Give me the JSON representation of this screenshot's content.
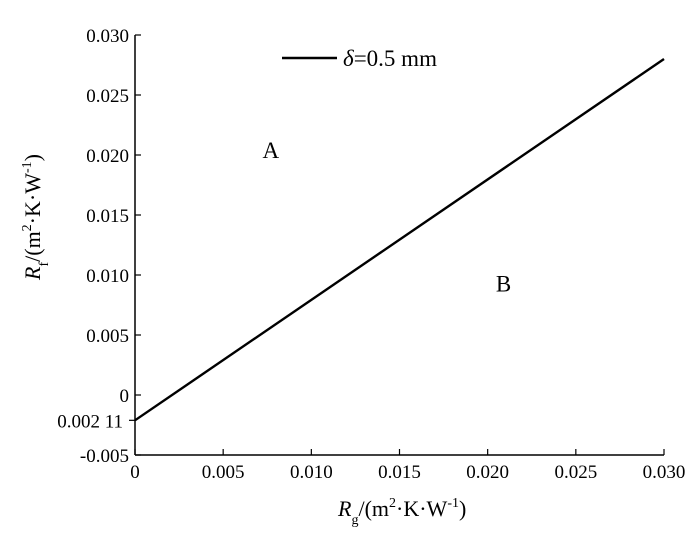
{
  "chart_data": {
    "type": "line",
    "x_ticks": [
      "0",
      "0.005",
      "0.010",
      "0.015",
      "0.020",
      "0.025",
      "0.030"
    ],
    "y_ticks": [
      "-0.005",
      "0",
      "0.005",
      "0.010",
      "0.015",
      "0.020",
      "0.025",
      "0.030"
    ],
    "xlim": [
      0,
      0.03
    ],
    "ylim": [
      -0.005,
      0.03
    ],
    "grid": false,
    "legend_position": "top",
    "series": [
      {
        "name": "δ=0.5 mm",
        "legend_symbol": "δ",
        "legend_value": "=0.5 mm",
        "color": "#000000",
        "x": [
          0,
          0.03
        ],
        "y": [
          -0.00211,
          0.028
        ]
      }
    ],
    "xlabel": {
      "main": "R",
      "sub": "g",
      "unit_open": "/(m",
      "sup1": "2",
      "unit_mid": "·K·W",
      "sup2": "-1",
      "unit_close": ")"
    },
    "ylabel": {
      "main": "R",
      "sub": "f",
      "unit_open": "/(m",
      "sup1": "2",
      "unit_mid": "·K·W",
      "sup2": "-1",
      "unit_close": ")"
    },
    "annotations": [
      {
        "text": "A",
        "x": 0.0077,
        "y": 0.0204
      },
      {
        "text": "B",
        "x": 0.0209,
        "y": 0.0093
      },
      {
        "text": "0.002 11",
        "y": -0.00211,
        "role": "intercept-label"
      }
    ]
  }
}
